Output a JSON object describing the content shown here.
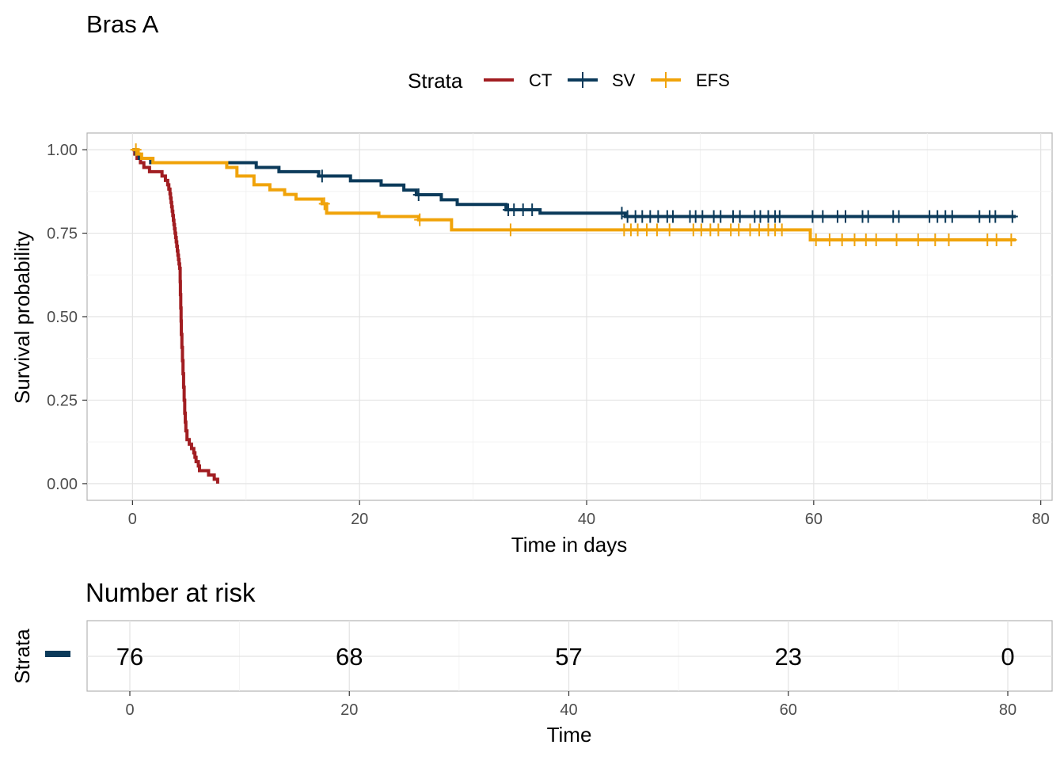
{
  "chart_data": [
    {
      "type": "line",
      "subtype": "kaplan-meier step",
      "title": "Bras A",
      "xlabel": "Time in days",
      "ylabel": "Survival probability",
      "xlim": [
        -4,
        81
      ],
      "ylim": [
        -0.05,
        1.05
      ],
      "x_ticks": [
        0,
        20,
        40,
        60,
        80
      ],
      "x_tick_labels": [
        "0",
        "20",
        "40",
        "60",
        "80"
      ],
      "y_ticks": [
        0,
        0.25,
        0.5,
        0.75,
        1.0
      ],
      "y_tick_labels": [
        "0.00",
        "0.25",
        "0.50",
        "0.75",
        "1.00"
      ],
      "grid": true,
      "legend": {
        "title": "Strata",
        "placement": "top"
      },
      "series": [
        {
          "name": "CT",
          "color": "#A11D21",
          "steps": [
            [
              0,
              1.0
            ],
            [
              0.2,
              0.987
            ],
            [
              0.4,
              0.974
            ],
            [
              0.7,
              0.961
            ],
            [
              1.0,
              0.947
            ],
            [
              1.5,
              0.934
            ],
            [
              2.6,
              0.921
            ],
            [
              2.9,
              0.908
            ],
            [
              3.1,
              0.895
            ],
            [
              3.2,
              0.882
            ],
            [
              3.3,
              0.868
            ],
            [
              3.35,
              0.855
            ],
            [
              3.4,
              0.842
            ],
            [
              3.45,
              0.829
            ],
            [
              3.5,
              0.816
            ],
            [
              3.55,
              0.803
            ],
            [
              3.6,
              0.789
            ],
            [
              3.65,
              0.776
            ],
            [
              3.7,
              0.763
            ],
            [
              3.75,
              0.75
            ],
            [
              3.8,
              0.737
            ],
            [
              3.85,
              0.724
            ],
            [
              3.9,
              0.711
            ],
            [
              3.95,
              0.697
            ],
            [
              4.0,
              0.684
            ],
            [
              4.05,
              0.671
            ],
            [
              4.1,
              0.658
            ],
            [
              4.15,
              0.645
            ],
            [
              4.2,
              0.605
            ],
            [
              4.22,
              0.566
            ],
            [
              4.25,
              0.526
            ],
            [
              4.28,
              0.487
            ],
            [
              4.3,
              0.447
            ],
            [
              4.35,
              0.408
            ],
            [
              4.4,
              0.368
            ],
            [
              4.45,
              0.329
            ],
            [
              4.5,
              0.289
            ],
            [
              4.55,
              0.25
            ],
            [
              4.6,
              0.211
            ],
            [
              4.65,
              0.184
            ],
            [
              4.7,
              0.158
            ],
            [
              4.8,
              0.132
            ],
            [
              5.0,
              0.118
            ],
            [
              5.2,
              0.105
            ],
            [
              5.4,
              0.092
            ],
            [
              5.5,
              0.079
            ],
            [
              5.6,
              0.066
            ],
            [
              5.8,
              0.053
            ],
            [
              5.9,
              0.039
            ],
            [
              6.7,
              0.026
            ],
            [
              7.2,
              0.013
            ],
            [
              7.5,
              0.0
            ]
          ],
          "censor_times": []
        },
        {
          "name": "SV",
          "color": "#0B3A5A",
          "steps": [
            [
              0,
              1.0
            ],
            [
              0.3,
              0.987
            ],
            [
              0.6,
              0.974
            ],
            [
              1.6,
              0.961
            ],
            [
              10.9,
              0.947
            ],
            [
              12.9,
              0.934
            ],
            [
              16.4,
              0.921
            ],
            [
              19.2,
              0.907
            ],
            [
              21.9,
              0.894
            ],
            [
              23.9,
              0.879
            ],
            [
              25.0,
              0.865
            ],
            [
              27.2,
              0.85
            ],
            [
              28.6,
              0.836
            ],
            [
              32.9,
              0.82
            ],
            [
              35.9,
              0.81
            ],
            [
              43.4,
              0.8
            ]
          ],
          "censor_times": [
            16.7,
            25.2,
            33.1,
            33.6,
            34.4,
            35.2,
            43.1,
            43.6,
            44.3,
            44.9,
            45.6,
            46.3,
            47.1,
            47.6,
            49.1,
            49.6,
            50.2,
            51.2,
            51.8,
            52.9,
            53.5,
            54.8,
            55.3,
            56.0,
            56.6,
            57.0,
            59.9,
            60.8,
            62.1,
            62.8,
            64.3,
            64.8,
            67.0,
            67.5,
            70.2,
            70.9,
            71.6,
            72.2,
            74.6,
            75.5,
            76.0,
            77.5
          ],
          "end_time": 77.8
        },
        {
          "name": "EFS",
          "color": "#F0A30A",
          "steps": [
            [
              0,
              1.0
            ],
            [
              0.5,
              0.987
            ],
            [
              0.8,
              0.974
            ],
            [
              1.8,
              0.961
            ],
            [
              8.3,
              0.947
            ],
            [
              8.6,
              0.947
            ],
            [
              9.2,
              0.921
            ],
            [
              10.7,
              0.895
            ],
            [
              12.1,
              0.88
            ],
            [
              13.4,
              0.866
            ],
            [
              14.4,
              0.852
            ],
            [
              16.7,
              0.838
            ],
            [
              17.1,
              0.81
            ],
            [
              21.7,
              0.8
            ],
            [
              25.2,
              0.79
            ],
            [
              28.1,
              0.76
            ],
            [
              59.7,
              0.73
            ]
          ],
          "censor_times": [
            0.3,
            16.9,
            25.3,
            33.3,
            43.3,
            43.9,
            44.5,
            45.3,
            46.2,
            47.3,
            49.4,
            50.1,
            50.9,
            51.6,
            52.7,
            53.4,
            54.4,
            55.2,
            56.0,
            56.6,
            57.2,
            60.2,
            61.4,
            62.5,
            63.6,
            64.6,
            65.5,
            67.3,
            69.2,
            70.7,
            71.9,
            75.3,
            76.1,
            77.4
          ],
          "end_time": 77.8
        }
      ]
    },
    {
      "type": "table",
      "title": "Number at risk",
      "xlabel": "Time",
      "ylabel": "Strata",
      "x_ticks": [
        0,
        20,
        40,
        60,
        80
      ],
      "x_tick_labels": [
        "0",
        "20",
        "40",
        "60",
        "80"
      ],
      "rows": [
        {
          "stratum_color": "#0B3A5A",
          "values": [
            "76",
            "68",
            "57",
            "23",
            "0"
          ]
        }
      ]
    }
  ]
}
